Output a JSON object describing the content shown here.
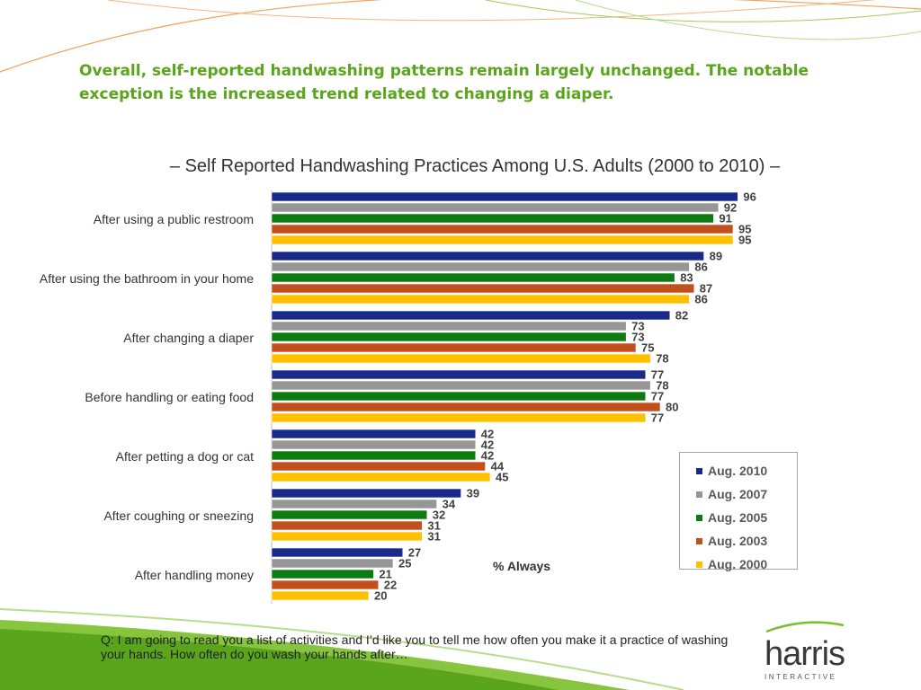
{
  "headline": "Overall, self-reported handwashing patterns remain largely unchanged.  The notable exception is the increased trend related to changing a diaper.",
  "subtitle": "– Self Reported Handwashing Practices Among U.S. Adults (2000 to 2010) –",
  "footnote": "Q: I am going to read you a list of activities and I’d like you to tell me how often you make it a practice of washing your hands. How often do you wash your hands after…",
  "logo": {
    "main": "harris",
    "sub": "INTERACTIVE"
  },
  "colors": {
    "headline": "#5aa51b",
    "deco_green": "#7bbf2a"
  },
  "chart_data": {
    "type": "bar",
    "orientation": "horizontal",
    "categories": [
      "After using a public restroom",
      "After using the bathroom in your home",
      "After changing a diaper",
      "Before handling or eating food",
      "After petting a dog or cat",
      "After coughing or sneezing",
      "After handling money"
    ],
    "series": [
      {
        "name": "Aug. 2010",
        "color": "#1a2a8a",
        "values": [
          96,
          89,
          82,
          77,
          42,
          39,
          27
        ]
      },
      {
        "name": "Aug. 2007",
        "color": "#969696",
        "values": [
          92,
          86,
          73,
          78,
          42,
          34,
          25
        ]
      },
      {
        "name": "Aug. 2005",
        "color": "#0e7a12",
        "values": [
          91,
          83,
          73,
          77,
          42,
          32,
          21
        ]
      },
      {
        "name": "Aug. 2003",
        "color": "#c1501c",
        "values": [
          95,
          87,
          75,
          80,
          44,
          31,
          22
        ]
      },
      {
        "name": "Aug. 2000",
        "color": "#ffc000",
        "values": [
          95,
          86,
          78,
          77,
          45,
          31,
          20
        ]
      }
    ],
    "xlabel": "% Always",
    "xlim": [
      0,
      100
    ],
    "legend_position": "right",
    "grid": false
  }
}
